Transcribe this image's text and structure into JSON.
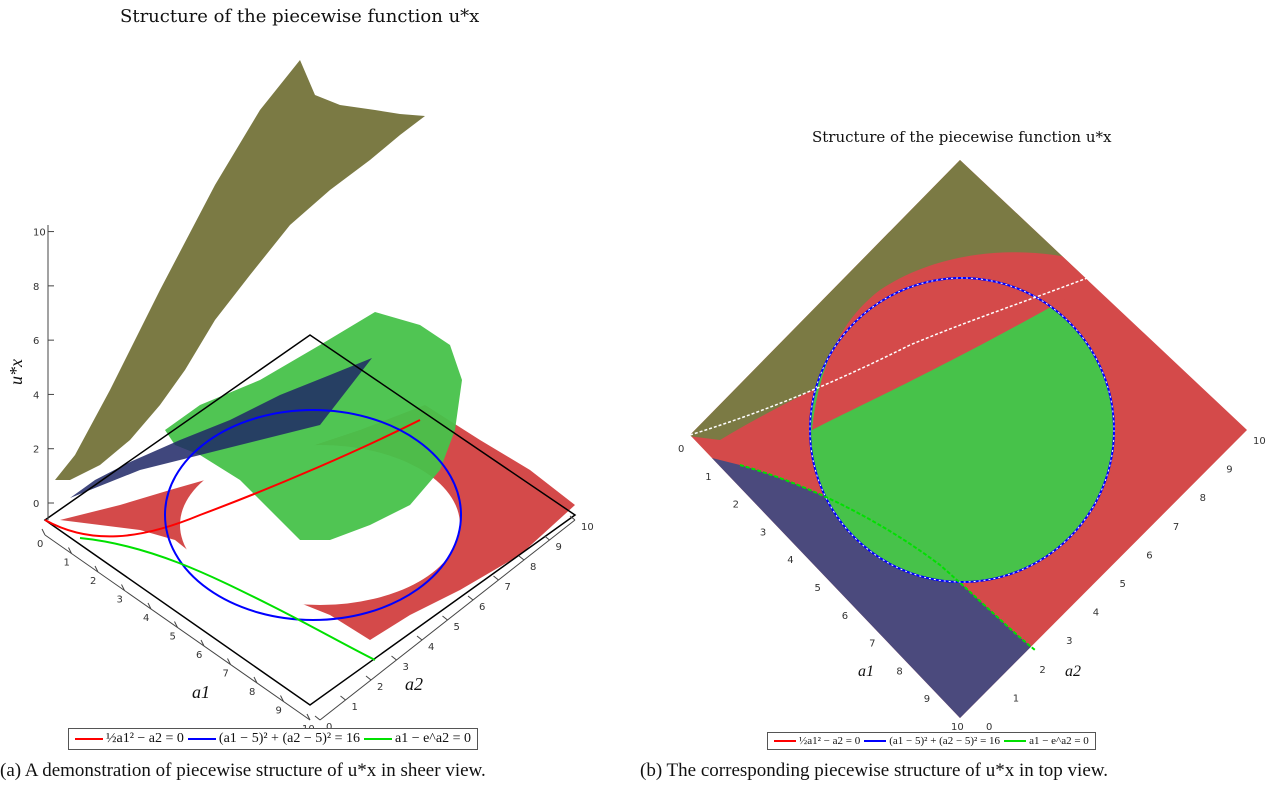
{
  "colors": {
    "red": "#ff0000",
    "blue": "#0000ff",
    "green": "#00e000",
    "olive": "#7b7a44",
    "region_red": "#d44a4a",
    "region_green": "#47c24a",
    "region_navy": "#1e2766",
    "region_slate": "#4b4a7d"
  },
  "chart_data": [
    {
      "type": "surface",
      "title": "Structure of the piecewise function u*x",
      "xlabel": "a1",
      "ylabel": "a2",
      "zlabel": "u*x",
      "xticks": [
        "0",
        "1",
        "2",
        "3",
        "4",
        "5",
        "6",
        "7",
        "8",
        "9",
        "10"
      ],
      "yticks": [
        "0",
        "1",
        "2",
        "3",
        "4",
        "5",
        "6",
        "7",
        "8",
        "9",
        "10"
      ],
      "zticks": [
        "0",
        "2",
        "4",
        "6",
        "8",
        "10"
      ],
      "xlim": [
        0,
        10
      ],
      "ylim": [
        0,
        10
      ],
      "zlim": [
        0,
        11
      ],
      "legend": [
        {
          "label": "½a1² − a2 = 0",
          "color": "red"
        },
        {
          "label": "(a1 − 5)² + (a2 − 5)² = 16",
          "color": "blue"
        },
        {
          "label": "a1 − e^a2 = 0",
          "color": "green"
        }
      ],
      "caption": "(a)  A demonstration of piecewise structure of u*x in sheer view."
    },
    {
      "type": "heatmap",
      "title": "Structure of the piecewise function u*x",
      "xlabel": "a1",
      "ylabel": "a2",
      "xticks": [
        "0",
        "1",
        "2",
        "3",
        "4",
        "5",
        "6",
        "7",
        "8",
        "9",
        "10"
      ],
      "yticks": [
        "0",
        "1",
        "2",
        "3",
        "4",
        "5",
        "6",
        "7",
        "8",
        "9",
        "10"
      ],
      "xlim": [
        0,
        10
      ],
      "ylim": [
        0,
        10
      ],
      "legend": [
        {
          "label": "½a1² − a2 = 0",
          "color": "red"
        },
        {
          "label": "(a1 − 5)² + (a2 − 5)² = 16",
          "color": "blue"
        },
        {
          "label": "a1 − e^a2 = 0",
          "color": "green"
        }
      ],
      "caption": "(b)  The corresponding piecewise structure of u*x in top view."
    }
  ]
}
